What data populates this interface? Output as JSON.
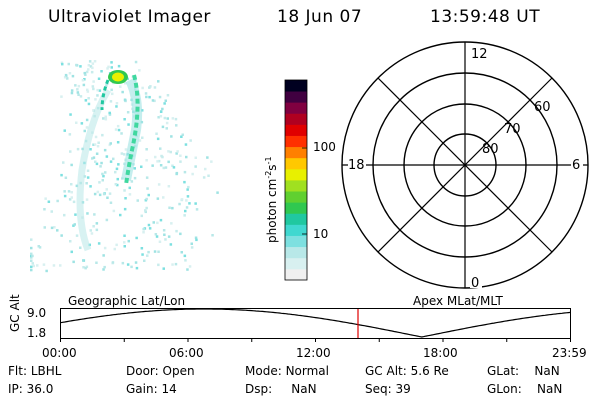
{
  "header": {
    "instrument": "Ultraviolet Imager",
    "date": "18 Jun 07",
    "time": "13:59:48 UT"
  },
  "colorbar": {
    "label": "photon cm",
    "exp1": "-2",
    "mid": "s",
    "exp2": "-1",
    "ticks": [
      "100",
      "10"
    ],
    "colors": [
      "#f0f0f0",
      "#d8f0f0",
      "#b8e8e8",
      "#7de0e0",
      "#40d8d0",
      "#20c8a0",
      "#30c850",
      "#60d030",
      "#a0e020",
      "#e8f000",
      "#ffc800",
      "#ff8000",
      "#ff3000",
      "#e00000",
      "#b00020",
      "#800040",
      "#400040",
      "#000020"
    ]
  },
  "polar_plot": {
    "mlt_labels": {
      "top": "12",
      "bottom": "0",
      "left": "18",
      "right": "6"
    },
    "lat_labels": [
      "80",
      "70",
      "60"
    ]
  },
  "altitude_strip": {
    "ylabel": "GC Alt",
    "yticks": [
      "9.0",
      "1.8"
    ],
    "left_title": "Geographic Lat/Lon",
    "right_title": "Apex MLat/MLT",
    "xticks": [
      "00:00",
      "06:00",
      "12:00",
      "18:00",
      "23:59"
    ],
    "cursor_time_hours": 14.0
  },
  "info": {
    "rows": [
      [
        {
          "label": "Flt:",
          "value": "LBHL"
        },
        {
          "label": "Door:",
          "value": "Open"
        },
        {
          "label": "Mode:",
          "value": "Normal"
        },
        {
          "label": "GC Alt:",
          "value": "5.6 Re"
        },
        {
          "label": "GLat:",
          "value": "NaN"
        }
      ],
      [
        {
          "label": "IP:",
          "value": "36.0"
        },
        {
          "label": "Gain:",
          "value": "14"
        },
        {
          "label": "Dsp:",
          "value": "NaN"
        },
        {
          "label": "Seq:",
          "value": "39"
        },
        {
          "label": "GLon:",
          "value": "NaN"
        }
      ]
    ]
  },
  "colors": {
    "cursor": "#e00000",
    "curve": "#000000"
  }
}
